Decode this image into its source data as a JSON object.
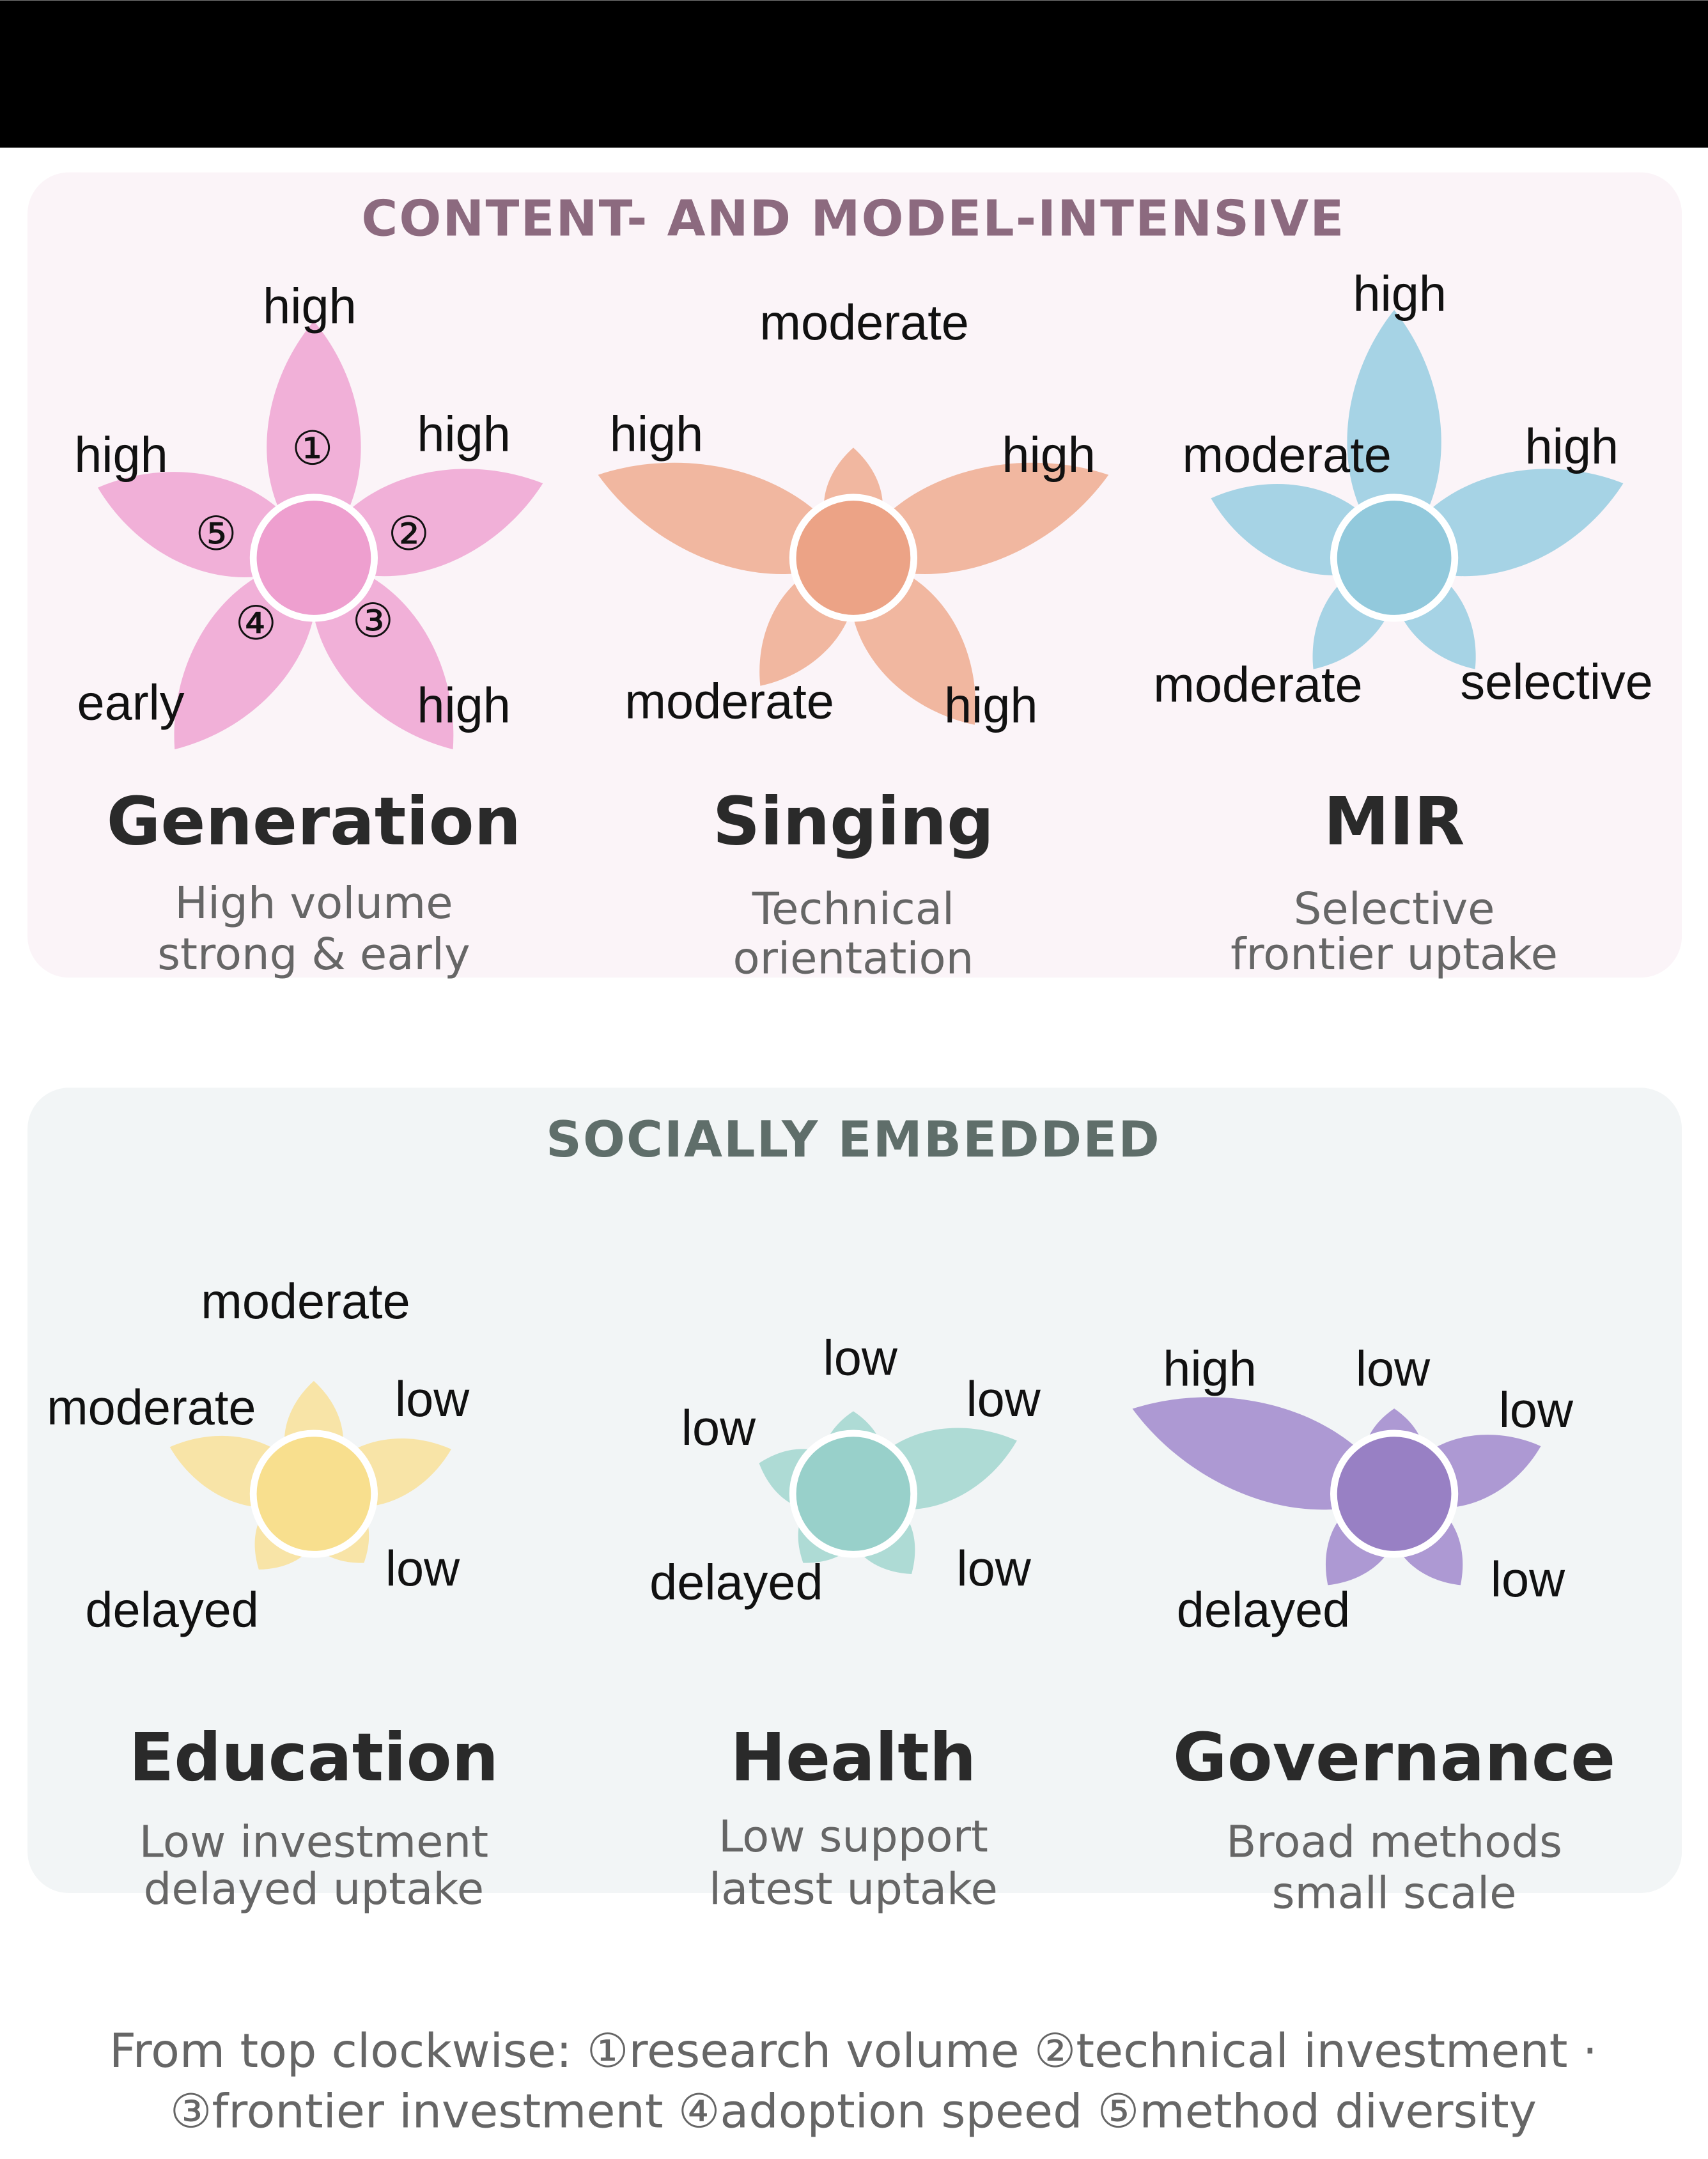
{
  "groups": [
    {
      "heading": "CONTENT- AND MODEL-INTENSIVE",
      "flowers": [
        {
          "name": "Generation",
          "subtitle": [
            "High volume",
            "strong & early"
          ],
          "petal_labels": [
            "high",
            "high",
            "high",
            "early",
            "high"
          ],
          "markers": [
            "①",
            "②",
            "③",
            "④",
            "⑤"
          ]
        },
        {
          "name": "Singing",
          "subtitle": [
            "Technical",
            "orientation"
          ],
          "petal_labels": [
            "moderate",
            "high",
            "high",
            "moderate",
            "high"
          ]
        },
        {
          "name": "MIR",
          "subtitle": [
            "Selective",
            "frontier uptake"
          ],
          "petal_labels": [
            "high",
            "high",
            "selective",
            "moderate",
            "moderate"
          ]
        }
      ]
    },
    {
      "heading": "SOCIALLY EMBEDDED",
      "flowers": [
        {
          "name": "Education",
          "subtitle": [
            "Low investment",
            "delayed uptake"
          ],
          "petal_labels": [
            "moderate",
            "low",
            "low",
            "delayed",
            "moderate"
          ]
        },
        {
          "name": "Health",
          "subtitle": [
            "Low support",
            "latest uptake"
          ],
          "petal_labels": [
            "low",
            "low",
            "low",
            "delayed",
            "low"
          ]
        },
        {
          "name": "Governance",
          "subtitle": [
            "Broad methods",
            "small scale"
          ],
          "petal_labels": [
            "low",
            "low",
            "low",
            "delayed",
            "high"
          ]
        }
      ]
    }
  ],
  "legend": [
    "From top clockwise: ①research volume ②technical investment ·",
    "③frontier investment ④adoption speed  ⑤method diversity"
  ]
}
